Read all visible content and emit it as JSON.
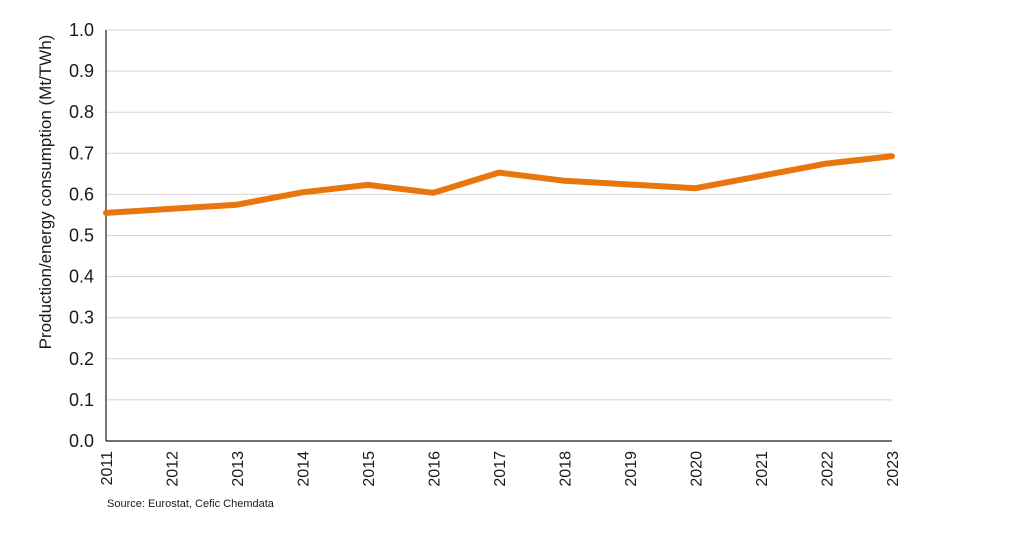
{
  "chart_data": {
    "type": "line",
    "title": "",
    "xlabel": "",
    "ylabel": "Production/energy consumption (Mt/TWh)",
    "ylim": [
      0,
      1.0
    ],
    "yticks": [
      "0.0",
      "0.1",
      "0.2",
      "0.3",
      "0.4",
      "0.5",
      "0.6",
      "0.7",
      "0.8",
      "0.9",
      "1.0"
    ],
    "categories": [
      "2011",
      "2012",
      "2013",
      "2014",
      "2015",
      "2016",
      "2017",
      "2018",
      "2019",
      "2020",
      "2021",
      "2022",
      "2023"
    ],
    "series": [
      {
        "name": "Production/energy consumption",
        "color": "#e8760c",
        "values": [
          0.555,
          0.565,
          0.575,
          0.605,
          0.623,
          0.604,
          0.653,
          0.633,
          0.624,
          0.615,
          0.645,
          0.675,
          0.693
        ]
      }
    ],
    "grid": true,
    "source": "Source: Eurostat, Cefic Chemdata"
  }
}
